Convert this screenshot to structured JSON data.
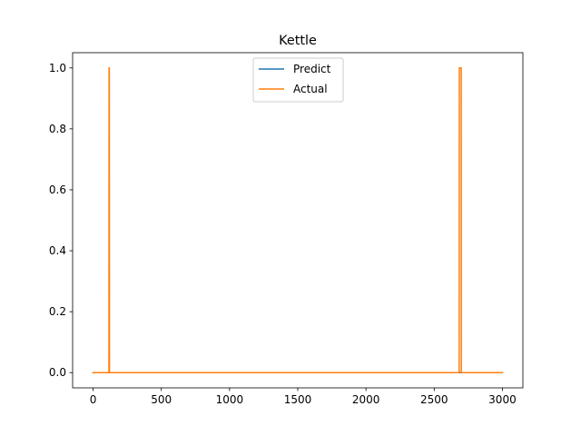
{
  "chart_data": {
    "type": "line",
    "title": "Kettle",
    "xlabel": "",
    "ylabel": "",
    "xlim": [
      -150,
      3150
    ],
    "ylim": [
      -0.05,
      1.05
    ],
    "xticks": [
      0,
      500,
      1000,
      1500,
      2000,
      2500,
      3000
    ],
    "xtick_labels": [
      "0",
      "500",
      "1000",
      "1500",
      "2000",
      "2500",
      "3000"
    ],
    "yticks": [
      0.0,
      0.2,
      0.4,
      0.6,
      0.8,
      1.0
    ],
    "ytick_labels": [
      "0.0",
      "0.2",
      "0.4",
      "0.6",
      "0.8",
      "1.0"
    ],
    "grid": false,
    "legend_position": "top-center",
    "series": [
      {
        "name": "Predict",
        "color": "#1f77b4",
        "x": [
          0,
          3000
        ],
        "y": [
          0,
          0
        ]
      },
      {
        "name": "Actual",
        "color": "#ff7f0e",
        "x": [
          0,
          116,
          117,
          119,
          120,
          2683,
          2684,
          2698,
          2699,
          3000
        ],
        "y": [
          0,
          0,
          1,
          1,
          0,
          0,
          1,
          1,
          0,
          0
        ]
      }
    ]
  }
}
